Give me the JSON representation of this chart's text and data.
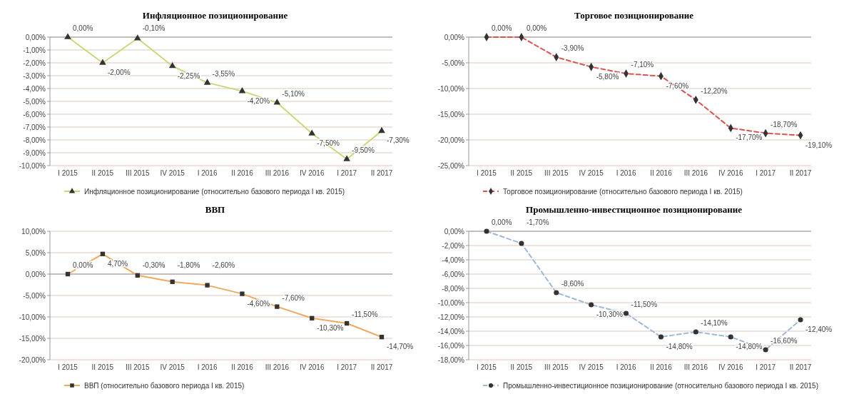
{
  "chart_data": [
    {
      "type": "line",
      "title": "Инфляционное позиционирование",
      "categories": [
        "I 2015",
        "II 2015",
        "III 2015",
        "IV 2015",
        "I 2016",
        "II 2016",
        "III 2016",
        "IV 2016",
        "I 2017",
        "II 2017"
      ],
      "series": [
        {
          "name": "Инфляционное позиционирование (относительно базового периода I кв. 2015)",
          "color": "#c9d77a",
          "values": [
            0,
            -2.0,
            -0.1,
            -2.25,
            -3.55,
            -4.2,
            -5.1,
            -7.5,
            -9.5,
            -7.3
          ],
          "value_labels": [
            "0,00%",
            "-2,00%",
            "-0,10%",
            "-2,25%",
            "-3,55%",
            "-4,20%",
            "-5,10%",
            "-7,50%",
            "-9,50%",
            "-7,30%"
          ]
        }
      ],
      "ylim": [
        -10,
        0
      ],
      "yticks": [
        {
          "value": 0,
          "label": "0,00%"
        },
        {
          "value": -1,
          "label": "-1,00%"
        },
        {
          "value": -2,
          "label": "-2,00%"
        },
        {
          "value": -3,
          "label": "-3,00%"
        },
        {
          "value": -4,
          "label": "-4,00%"
        },
        {
          "value": -5,
          "label": "-5,00%"
        },
        {
          "value": -6,
          "label": "-6,00%"
        },
        {
          "value": -7,
          "label": "-7,00%"
        },
        {
          "value": -8,
          "label": "-8,00%"
        },
        {
          "value": -9,
          "label": "-9,00%"
        },
        {
          "value": -10,
          "label": "-10,00%"
        }
      ],
      "grid": "y",
      "legend": "bottom",
      "marker": "triangle",
      "line_style": "solid"
    },
    {
      "type": "line",
      "title": "Торговое позиционирование",
      "categories": [
        "I 2015",
        "II 2015",
        "III 2015",
        "IV 2015",
        "I 2016",
        "II 2016",
        "III 2016",
        "IV 2016",
        "I 2017",
        "II 2017"
      ],
      "series": [
        {
          "name": "Торговое позиционирование (относительно базового периода I кв. 2015)",
          "color": "#d9534f",
          "values": [
            0,
            0,
            -3.9,
            -5.8,
            -7.1,
            -7.6,
            -12.2,
            -17.7,
            -18.7,
            -19.1
          ],
          "value_labels": [
            "0,00%",
            "0,00%",
            "-3,90%",
            "-5,80%",
            "-7,10%",
            "-7,60%",
            "-12,20%",
            "-17,70%",
            "-18,70%",
            "-19,10%"
          ]
        }
      ],
      "ylim": [
        -25,
        0
      ],
      "yticks": [
        {
          "value": 0,
          "label": "0,00%"
        },
        {
          "value": -5,
          "label": "-5,00%"
        },
        {
          "value": -10,
          "label": "-10,00%"
        },
        {
          "value": -15,
          "label": "-15,00%"
        },
        {
          "value": -20,
          "label": "-20,00%"
        },
        {
          "value": -25,
          "label": "-25,00%"
        }
      ],
      "grid": "y",
      "legend": "bottom",
      "marker": "diamond",
      "line_style": "dashed"
    },
    {
      "type": "line",
      "title": "ВВП",
      "categories": [
        "I 2015",
        "II 2015",
        "III 2015",
        "IV 2015",
        "I 2016",
        "II 2016",
        "III 2016",
        "IV 2016",
        "I 2017",
        "II 2017"
      ],
      "series": [
        {
          "name": "ВВП (относительно базового периода I кв. 2015)",
          "color": "#f0a860",
          "values": [
            0,
            4.7,
            -0.3,
            -1.8,
            -2.6,
            -4.6,
            -7.6,
            -10.3,
            -11.5,
            -14.7
          ],
          "value_labels": [
            "0,00%",
            "4,70%",
            "-0,30%",
            "-1,80%",
            "-2,60%",
            "-4,60%",
            "-7,60%",
            "-10,30%",
            "-11,50%",
            "-14,70%"
          ]
        }
      ],
      "ylim": [
        -20,
        10
      ],
      "yticks": [
        {
          "value": 10,
          "label": "10,00%"
        },
        {
          "value": 5,
          "label": "5,00%"
        },
        {
          "value": 0,
          "label": "0,00%"
        },
        {
          "value": -5,
          "label": "-5,00%"
        },
        {
          "value": -10,
          "label": "-10,00%"
        },
        {
          "value": -15,
          "label": "-15,00%"
        },
        {
          "value": -20,
          "label": "-20,00%"
        }
      ],
      "grid": "y",
      "legend": "bottom",
      "marker": "square",
      "line_style": "solid"
    },
    {
      "type": "line",
      "title": "Промышленно-инвестиционное позиционирование",
      "categories": [
        "I 2015",
        "II 2015",
        "III 2015",
        "IV 2015",
        "I 2016",
        "II 2016",
        "III 2016",
        "IV 2016",
        "I 2017",
        "II 2017"
      ],
      "series": [
        {
          "name": "Промышленно-инвестиционное позиционирование (относительно базового периода I кв. 2015)",
          "color": "#9fb8d8",
          "values": [
            0,
            -1.7,
            -8.6,
            -10.3,
            -11.5,
            -14.8,
            -14.1,
            -14.8,
            -16.6,
            -12.4
          ],
          "value_labels": [
            "0,00%",
            "-1,70%",
            "-8,60%",
            "-10,30%",
            "-11,50%",
            "-14,80%",
            "-14,10%",
            "-14,80%",
            "-16,60%",
            "-12,40%"
          ]
        }
      ],
      "ylim": [
        -18,
        0
      ],
      "yticks": [
        {
          "value": 0,
          "label": "0,00%"
        },
        {
          "value": -2,
          "label": "-2,00%"
        },
        {
          "value": -4,
          "label": "-4,00%"
        },
        {
          "value": -6,
          "label": "-6,00%"
        },
        {
          "value": -8,
          "label": "-8,00%"
        },
        {
          "value": -10,
          "label": "-10,00%"
        },
        {
          "value": -12,
          "label": "-12,00%"
        },
        {
          "value": -14,
          "label": "-14,00%"
        },
        {
          "value": -16,
          "label": "-16,00%"
        },
        {
          "value": -18,
          "label": "-18,00%"
        }
      ],
      "grid": "y",
      "legend": "bottom",
      "marker": "circle",
      "line_style": "dashed"
    }
  ]
}
